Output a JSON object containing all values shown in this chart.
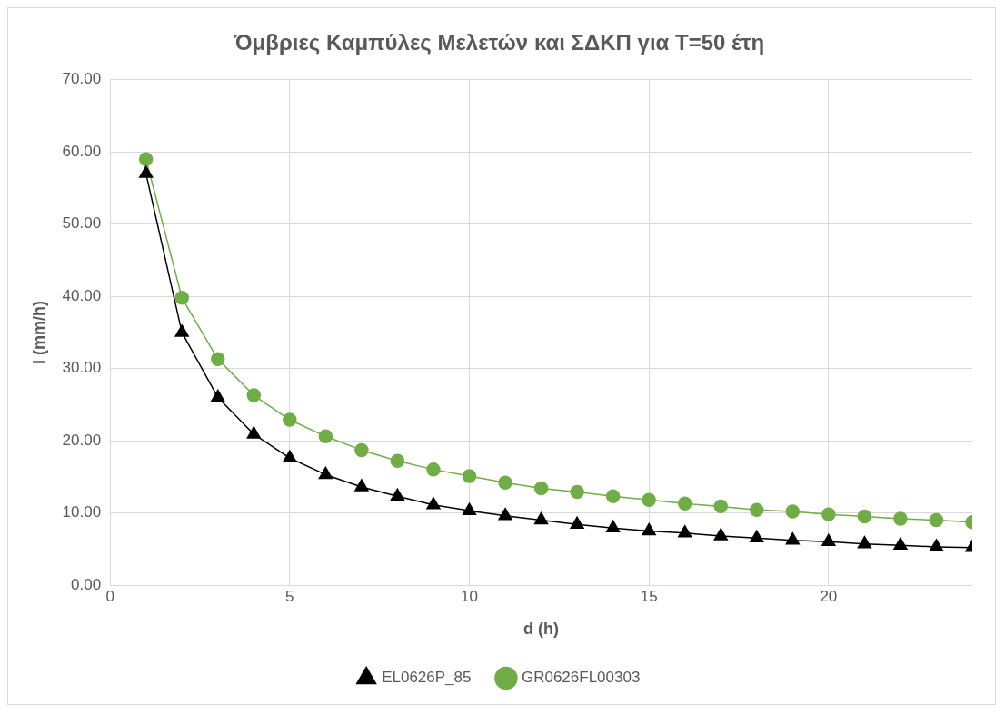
{
  "chart_data": {
    "type": "line",
    "title": "Όμβριες Καμπύλες Μελετών και ΣΔΚΠ για T=50 έτη",
    "xlabel": "d (h)",
    "ylabel": "i (mm/h)",
    "x": [
      1,
      2,
      3,
      4,
      5,
      6,
      7,
      8,
      9,
      10,
      11,
      12,
      13,
      14,
      15,
      16,
      17,
      18,
      19,
      20,
      21,
      22,
      23,
      24
    ],
    "series": [
      {
        "name": "EL0626P_85",
        "color": "#000000",
        "marker": "triangle",
        "values": [
          57.0,
          35.0,
          26.0,
          20.9,
          17.6,
          15.3,
          13.6,
          12.3,
          11.1,
          10.3,
          9.6,
          9.0,
          8.4,
          7.9,
          7.5,
          7.2,
          6.8,
          6.5,
          6.2,
          6.0,
          5.7,
          5.5,
          5.3,
          5.2
        ]
      },
      {
        "name": "GR0626FL00303",
        "color": "#70ad47",
        "marker": "circle",
        "values": [
          59.0,
          39.8,
          31.3,
          26.3,
          22.9,
          20.6,
          18.7,
          17.2,
          16.0,
          15.1,
          14.2,
          13.4,
          12.9,
          12.3,
          11.8,
          11.3,
          10.9,
          10.4,
          10.2,
          9.8,
          9.5,
          9.2,
          9.0,
          8.7
        ]
      }
    ],
    "xlim": [
      0,
      24
    ],
    "xticks": [
      0,
      5,
      10,
      15,
      20
    ],
    "ylim": [
      0,
      70
    ],
    "yticks": [
      {
        "value": 0,
        "label": "0.00"
      },
      {
        "value": 10,
        "label": "10.00"
      },
      {
        "value": 20,
        "label": "20.00"
      },
      {
        "value": 30,
        "label": "30.00"
      },
      {
        "value": 40,
        "label": "40.00"
      },
      {
        "value": 50,
        "label": "50.00"
      },
      {
        "value": 60,
        "label": "60.00"
      },
      {
        "value": 70,
        "label": "70.00"
      }
    ],
    "grid": true,
    "legend": "bottom",
    "line_style": "solid"
  }
}
